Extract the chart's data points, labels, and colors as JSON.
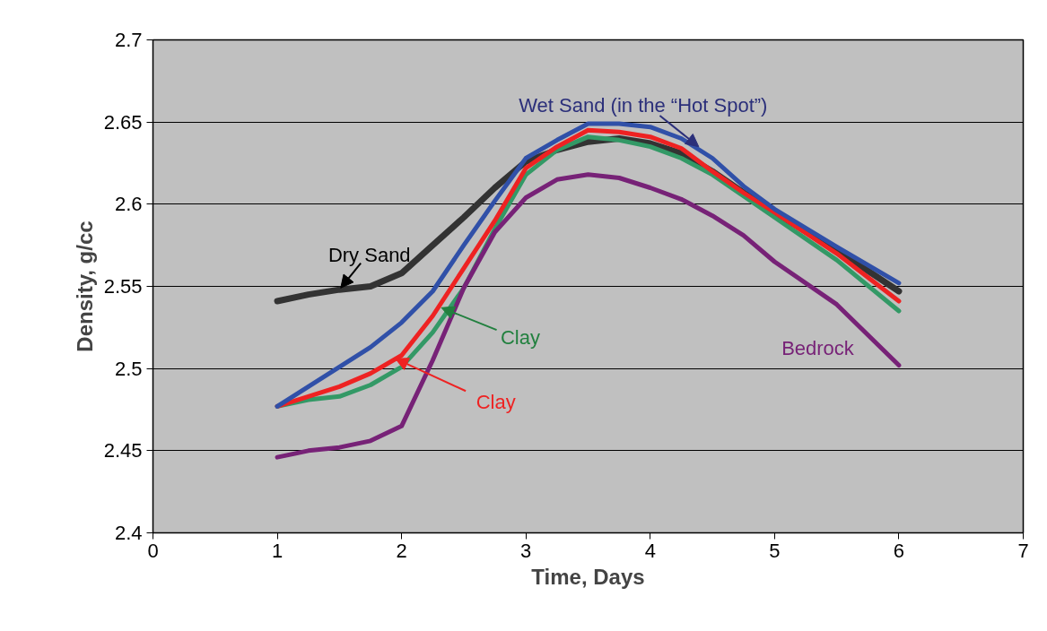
{
  "chart_data": {
    "type": "line",
    "xlabel": "Time, Days",
    "ylabel": "Density, g/cc",
    "x": [
      1,
      1.25,
      1.5,
      1.75,
      2,
      2.25,
      2.5,
      2.75,
      3,
      3.25,
      3.5,
      3.75,
      4,
      4.25,
      4.5,
      4.75,
      5,
      5.5,
      6
    ],
    "series": [
      {
        "color": "#333333",
        "values": [
          2.541,
          2.545,
          2.548,
          2.55,
          2.558,
          2.575,
          2.592,
          2.61,
          2.626,
          2.633,
          2.638,
          2.64,
          2.637,
          2.631,
          2.62,
          2.607,
          2.595,
          2.572,
          2.547
        ]
      },
      {
        "color": "#339966",
        "values": [
          2.477,
          2.481,
          2.483,
          2.49,
          2.501,
          2.522,
          2.549,
          2.585,
          2.618,
          2.633,
          2.641,
          2.639,
          2.635,
          2.628,
          2.618,
          2.605,
          2.592,
          2.566,
          2.535
        ]
      },
      {
        "color": "#ee2222",
        "values": [
          2.477,
          2.483,
          2.489,
          2.497,
          2.508,
          2.532,
          2.561,
          2.59,
          2.622,
          2.635,
          2.645,
          2.644,
          2.641,
          2.634,
          2.62,
          2.607,
          2.595,
          2.57,
          2.541
        ]
      },
      {
        "color": "#3050a8",
        "values": [
          2.477,
          2.489,
          2.501,
          2.513,
          2.528,
          2.547,
          2.575,
          2.602,
          2.628,
          2.639,
          2.649,
          2.649,
          2.647,
          2.64,
          2.628,
          2.611,
          2.597,
          2.574,
          2.552
        ]
      },
      {
        "color": "#772277",
        "values": [
          2.446,
          2.45,
          2.452,
          2.456,
          2.465,
          2.505,
          2.549,
          2.583,
          2.604,
          2.615,
          2.618,
          2.616,
          2.61,
          2.603,
          2.593,
          2.581,
          2.565,
          2.539,
          2.502
        ]
      }
    ],
    "annotations": [
      {
        "text": "Wet Sand (in the “Hot Spot”)",
        "x": 4.39,
        "y": 2.635
      },
      {
        "text": "Dry Sand",
        "x": 1.51,
        "y": 2.549
      },
      {
        "text": "Clay",
        "x": 2.32,
        "y": 2.537
      },
      "Bedrock",
      {
        "text": "Clay",
        "x": 1.95,
        "y": 2.506
      }
    ],
    "xlim": [
      0,
      7
    ],
    "xticks": [
      0,
      1,
      2,
      3,
      4,
      5,
      6,
      7
    ],
    "ylim": [
      2.4,
      2.7
    ],
    "yticks": [
      2.4,
      2.45,
      2.5,
      2.55,
      2.6,
      2.65,
      2.7
    ],
    "grid": "y",
    "marker": "none",
    "line_style": "solid"
  }
}
